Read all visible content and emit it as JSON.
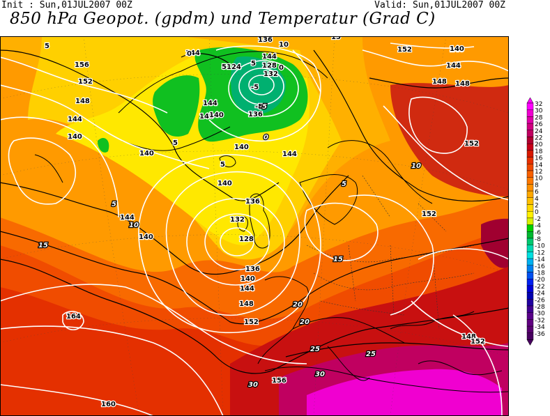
{
  "header": {
    "init_text": "Init : Sun,01JUL2007 00Z",
    "valid_text": "Valid: Sun,01JUL2007 00Z",
    "title": "850 hPa Geopot. (gpdm) und Temperatur (Grad C)"
  },
  "legend": {
    "levels": [
      {
        "label": "32",
        "color": "#ff00ff"
      },
      {
        "label": "30",
        "color": "#f000d0"
      },
      {
        "label": "28",
        "color": "#e000a8"
      },
      {
        "label": "26",
        "color": "#d00080"
      },
      {
        "label": "24",
        "color": "#c00060"
      },
      {
        "label": "22",
        "color": "#b00030"
      },
      {
        "label": "20",
        "color": "#c80018"
      },
      {
        "label": "18",
        "color": "#d81800"
      },
      {
        "label": "16",
        "color": "#e83000"
      },
      {
        "label": "14",
        "color": "#f04800"
      },
      {
        "label": "12",
        "color": "#f86000"
      },
      {
        "label": "10",
        "color": "#ff7800"
      },
      {
        "label": "8",
        "color": "#ff9000"
      },
      {
        "label": "6",
        "color": "#ffa800"
      },
      {
        "label": "4",
        "color": "#ffc000"
      },
      {
        "label": "2",
        "color": "#ffd800"
      },
      {
        "label": "0",
        "color": "#fff000"
      },
      {
        "label": "-2",
        "color": "#d8f000"
      },
      {
        "label": "-4",
        "color": "#00d000"
      },
      {
        "label": "-6",
        "color": "#00b830"
      },
      {
        "label": "-8",
        "color": "#00c870"
      },
      {
        "label": "-10",
        "color": "#00d8b0"
      },
      {
        "label": "-12",
        "color": "#00e0e0"
      },
      {
        "label": "-14",
        "color": "#00b0f0"
      },
      {
        "label": "-16",
        "color": "#0080f0"
      },
      {
        "label": "-18",
        "color": "#0050f0"
      },
      {
        "label": "-20",
        "color": "#0020f0"
      },
      {
        "label": "-22",
        "color": "#0000d8"
      },
      {
        "label": "-24",
        "color": "#0000b0"
      },
      {
        "label": "-26",
        "color": "#2000a0"
      },
      {
        "label": "-28",
        "color": "#400090"
      },
      {
        "label": "-30",
        "color": "#580088"
      },
      {
        "label": "-32",
        "color": "#600080"
      },
      {
        "label": "-34",
        "color": "#580070"
      },
      {
        "label": "-36",
        "color": "#480060"
      }
    ]
  },
  "geopotential_labels": [
    "136",
    "5",
    "10",
    "15",
    "140",
    "144",
    "156",
    "152",
    "148",
    "144",
    "140",
    "0",
    "5",
    "144",
    "128",
    "132",
    "124",
    "5",
    "0",
    "-5",
    "-5",
    "136",
    "140",
    "144",
    "140",
    "0",
    "5",
    "140",
    "140",
    "5",
    "144",
    "140",
    "144",
    "140",
    "136",
    "132",
    "128",
    "136",
    "140",
    "144",
    "148",
    "152",
    "164",
    "160",
    "156",
    "148",
    "152",
    "148",
    "152",
    "140",
    "144",
    "148",
    "152",
    "152"
  ],
  "temperature_labels": [
    "5",
    "10",
    "15",
    "20",
    "25",
    "30",
    "-5",
    "0",
    "5",
    "10",
    "15",
    "20",
    "25",
    "30"
  ]
}
